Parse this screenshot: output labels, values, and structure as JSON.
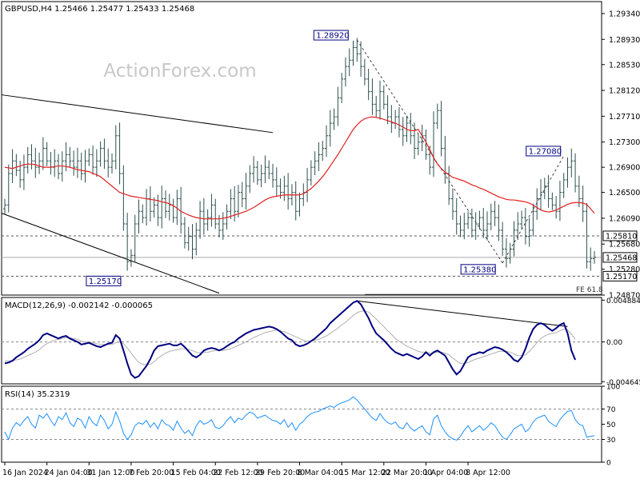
{
  "chart_data": [
    {
      "type": "candlestick-ohlc",
      "panel": "price",
      "header": "GBPUSD,H4  1.25466 1.25477 1.25433 1.25468",
      "watermark": "ActionForex.com",
      "yrange": [
        1.2487,
        1.2953
      ],
      "y_ticks": [
        "1.29340",
        "1.28930",
        "1.28530",
        "1.28120",
        "1.27710",
        "1.27300",
        "1.26900",
        "1.26500",
        "1.26090",
        "1.25680",
        "1.25280",
        "1.24870"
      ],
      "y_tick_values": [
        1.2934,
        1.2893,
        1.2853,
        1.2812,
        1.2771,
        1.273,
        1.269,
        1.265,
        1.2609,
        1.2568,
        1.2528,
        1.2487
      ],
      "price_boxes": [
        {
          "label": "1.25810",
          "value": 1.2581
        },
        {
          "label": "1.25468",
          "value": 1.25468
        },
        {
          "label": "1.25170",
          "value": 1.2517
        }
      ],
      "horizontal_levels": [
        1.2581,
        1.25468,
        1.2517
      ],
      "annotations": [
        {
          "label": "1.28920",
          "value": 1.2892
        },
        {
          "label": "1.27080",
          "value": 1.2708
        },
        {
          "label": "1.25380",
          "value": 1.2538
        },
        {
          "label": "1.25170",
          "value": 1.2517
        }
      ],
      "fe_label": "FE 61.8",
      "fe_level": 1.2488,
      "trendlines": [
        {
          "kind": "channel-top",
          "from": [
            0,
            1.2805
          ],
          "to": [
            70,
            1.2745
          ]
        },
        {
          "kind": "channel-bottom",
          "from": [
            0,
            1.2617
          ],
          "to": [
            56,
            1.249
          ]
        },
        {
          "kind": "projection-dashed",
          "from": [
            92,
            1.2892
          ],
          "to": [
            130,
            1.2538
          ]
        },
        {
          "kind": "projection-dashed",
          "from": [
            130,
            1.2538
          ],
          "to": [
            146,
            1.2708
          ]
        }
      ],
      "series": [
        {
          "role": "close",
          "values": [
            1.263,
            1.268,
            1.27,
            1.2685,
            1.267,
            1.269,
            1.271,
            1.27,
            1.269,
            1.27,
            1.272,
            1.27,
            1.269,
            1.27,
            1.268,
            1.27,
            1.271,
            1.27,
            1.269,
            1.27,
            1.268,
            1.27,
            1.271,
            1.269,
            1.27,
            1.272,
            1.27,
            1.269,
            1.27,
            1.274,
            1.268,
            1.26,
            1.254,
            1.255,
            1.26,
            1.262,
            1.261,
            1.264,
            1.262,
            1.263,
            1.261,
            1.264,
            1.262,
            1.263,
            1.261,
            1.264,
            1.26,
            1.257,
            1.258,
            1.256,
            1.259,
            1.262,
            1.26,
            1.261,
            1.263,
            1.26,
            1.259,
            1.26,
            1.262,
            1.264,
            1.262,
            1.265,
            1.264,
            1.266,
            1.268,
            1.269,
            1.267,
            1.268,
            1.269,
            1.268,
            1.267,
            1.266,
            1.265,
            1.266,
            1.264,
            1.265,
            1.262,
            1.264,
            1.265,
            1.267,
            1.269,
            1.27,
            1.271,
            1.272,
            1.274,
            1.276,
            1.277,
            1.28,
            1.283,
            1.285,
            1.286,
            1.288,
            1.287,
            1.285,
            1.283,
            1.281,
            1.279,
            1.278,
            1.281,
            1.279,
            1.277,
            1.276,
            1.277,
            1.275,
            1.274,
            1.276,
            1.274,
            1.272,
            1.273,
            1.274,
            1.271,
            1.269,
            1.276,
            1.278,
            1.272,
            1.268,
            1.264,
            1.262,
            1.26,
            1.259,
            1.26,
            1.261,
            1.259,
            1.26,
            1.261,
            1.259,
            1.26,
            1.262,
            1.261,
            1.259,
            1.256,
            1.2545,
            1.256,
            1.259,
            1.26,
            1.261,
            1.258,
            1.259,
            1.262,
            1.264,
            1.265,
            1.266,
            1.264,
            1.263,
            1.262,
            1.265,
            1.267,
            1.269,
            1.27,
            1.266,
            1.264,
            1.262,
            1.254,
            1.2545,
            1.2547
          ]
        },
        {
          "role": "moving-average",
          "values": [
            1.269,
            1.2689,
            1.2688,
            1.269,
            1.2692,
            1.2694,
            1.2695,
            1.2695,
            1.2694,
            1.2692,
            1.269,
            1.269,
            1.269,
            1.2691,
            1.2692,
            1.2692,
            1.2691,
            1.269,
            1.2688,
            1.2686,
            1.2685,
            1.2684,
            1.2683,
            1.268,
            1.2678,
            1.2675,
            1.267,
            1.2665,
            1.266,
            1.2655,
            1.265,
            1.2648,
            1.2646,
            1.2644,
            1.2643,
            1.2642,
            1.2641,
            1.264,
            1.2639,
            1.2638,
            1.2637,
            1.2635,
            1.2634,
            1.2632,
            1.2629,
            1.2625,
            1.262,
            1.2617,
            1.2614,
            1.2612,
            1.261,
            1.2609,
            1.2608,
            1.2608,
            1.2608,
            1.2608,
            1.2608,
            1.2609,
            1.261,
            1.2612,
            1.2614,
            1.2616,
            1.2618,
            1.262,
            1.2623,
            1.2626,
            1.263,
            1.2634,
            1.2638,
            1.2641,
            1.2643,
            1.2644,
            1.2645,
            1.2646,
            1.2646,
            1.2646,
            1.2646,
            1.2646,
            1.2648,
            1.2652,
            1.2656,
            1.2662,
            1.2668,
            1.2675,
            1.2683,
            1.2692,
            1.2701,
            1.271,
            1.272,
            1.273,
            1.274,
            1.275,
            1.2757,
            1.2763,
            1.2767,
            1.2769,
            1.277,
            1.2769,
            1.2768,
            1.2766,
            1.2764,
            1.2762,
            1.276,
            1.2757,
            1.2754,
            1.275,
            1.2748,
            1.2748,
            1.275,
            1.274,
            1.273,
            1.2718,
            1.2705,
            1.2695,
            1.2688,
            1.2682,
            1.2678,
            1.2674,
            1.2672,
            1.267,
            1.2668,
            1.2665,
            1.2662,
            1.266,
            1.2657,
            1.2655,
            1.2652,
            1.2649,
            1.2646,
            1.2643,
            1.2641,
            1.2639,
            1.2638,
            1.2638,
            1.2637,
            1.2636,
            1.2635,
            1.2633,
            1.263,
            1.2626,
            1.2622,
            1.262,
            1.2619,
            1.262,
            1.2622,
            1.2625,
            1.2628,
            1.2631,
            1.2633,
            1.2634,
            1.2634,
            1.2633,
            1.2631,
            1.2624,
            1.2617
          ]
        }
      ]
    },
    {
      "type": "line",
      "panel": "macd",
      "header": "MACD(12,26,9) -0.002142 -0.000065",
      "yrange": [
        -0.0049,
        0.0052
      ],
      "y_ticks": [
        "0.004884",
        "0.00",
        "-0.004645"
      ],
      "y_tick_values": [
        0.004884,
        0.0,
        -0.004645
      ],
      "zero_line": 0.0,
      "trendline": {
        "from": [
          92,
          0.0048
        ],
        "to": [
          147,
          0.0018
        ]
      },
      "series": [
        {
          "role": "macd",
          "values": [
            -0.0025,
            -0.0024,
            -0.0022,
            -0.0018,
            -0.0015,
            -0.0012,
            -0.0008,
            -0.0005,
            -0.0002,
            0.0002,
            0.0008,
            0.001,
            0.0008,
            0.0006,
            0.0004,
            0.0006,
            0.0007,
            0.0004,
            0.0002,
            0.0,
            -0.0003,
            -0.0002,
            -0.0001,
            -0.0003,
            -0.0005,
            -0.0006,
            -0.0004,
            -0.0002,
            -0.0001,
            0.0008,
            0.0004,
            -0.001,
            -0.0025,
            -0.0038,
            -0.0042,
            -0.004,
            -0.0034,
            -0.0028,
            -0.002,
            -0.001,
            -0.0005,
            -0.0004,
            -0.0003,
            -0.0002,
            -0.0004,
            -0.0004,
            -0.0002,
            -0.0006,
            -0.0011,
            -0.0016,
            -0.0018,
            -0.0015,
            -0.001,
            -0.0008,
            -0.0007,
            -0.0008,
            -0.001,
            -0.0008,
            -0.0005,
            -0.0002,
            0.0,
            0.0004,
            0.0007,
            0.001,
            0.0012,
            0.0014,
            0.0015,
            0.0016,
            0.0017,
            0.0018,
            0.0017,
            0.0015,
            0.0012,
            0.0008,
            0.0004,
            0.0002,
            -0.0003,
            -0.0005,
            -0.0004,
            -0.0002,
            0.0001,
            0.0004,
            0.0008,
            0.0012,
            0.0016,
            0.0022,
            0.0026,
            0.003,
            0.0034,
            0.0038,
            0.0042,
            0.0046,
            0.0048,
            0.0044,
            0.0036,
            0.0028,
            0.0018,
            0.001,
            0.0006,
            0.0002,
            -0.0003,
            -0.0008,
            -0.0012,
            -0.0014,
            -0.0016,
            -0.0014,
            -0.0016,
            -0.0018,
            -0.002,
            -0.0017,
            -0.0012,
            -0.0016,
            -0.0012,
            -0.001,
            -0.0013,
            -0.0016,
            -0.0024,
            -0.0032,
            -0.0038,
            -0.0034,
            -0.0026,
            -0.0018,
            -0.0015,
            -0.0014,
            -0.0012,
            -0.0013,
            -0.001,
            -0.0008,
            -0.0006,
            -0.0007,
            -0.0009,
            -0.0012,
            -0.0016,
            -0.0021,
            -0.0023,
            -0.0018,
            -0.0008,
            0.0005,
            0.0015,
            0.002,
            0.0022,
            0.002,
            0.0016,
            0.0013,
            0.0016,
            0.002,
            0.0022,
            0.001,
            -0.001,
            -0.0021
          ]
        },
        {
          "role": "signal",
          "values": [
            -0.0022,
            -0.0022,
            -0.0022,
            -0.0021,
            -0.002,
            -0.0018,
            -0.0016,
            -0.0014,
            -0.0012,
            -0.0009,
            -0.0005,
            -0.0002,
            0.0,
            0.0002,
            0.0003,
            0.0004,
            0.0005,
            0.0005,
            0.0004,
            0.0003,
            0.0001,
            0.0,
            0.0,
            -0.0001,
            -0.0002,
            -0.0003,
            -0.0003,
            -0.0003,
            -0.0003,
            -0.0001,
            0.0,
            -0.0002,
            -0.0007,
            -0.0013,
            -0.0019,
            -0.0024,
            -0.0026,
            -0.0027,
            -0.0026,
            -0.0023,
            -0.0019,
            -0.0016,
            -0.0013,
            -0.0011,
            -0.001,
            -0.0009,
            -0.0008,
            -0.0008,
            -0.0009,
            -0.001,
            -0.0012,
            -0.0013,
            -0.0012,
            -0.0012,
            -0.0011,
            -0.001,
            -0.001,
            -0.001,
            -0.0009,
            -0.0008,
            -0.0006,
            -0.0004,
            -0.0002,
            0.0,
            0.0003,
            0.0005,
            0.0007,
            0.0009,
            0.0011,
            0.0012,
            0.0013,
            0.0014,
            0.0013,
            0.0012,
            0.001,
            0.0008,
            0.0006,
            0.0004,
            0.0002,
            0.0001,
            0.0001,
            0.0002,
            0.0003,
            0.0005,
            0.0007,
            0.001,
            0.0013,
            0.0016,
            0.002,
            0.0023,
            0.0027,
            0.0031,
            0.0034,
            0.0036,
            0.0036,
            0.0035,
            0.0031,
            0.0027,
            0.0022,
            0.0018,
            0.0013,
            0.0009,
            0.0004,
            0.0001,
            -0.0002,
            -0.0005,
            -0.0007,
            -0.0009,
            -0.0011,
            -0.0012,
            -0.0012,
            -0.0013,
            -0.0013,
            -0.0012,
            -0.0012,
            -0.0013,
            -0.0015,
            -0.0019,
            -0.0022,
            -0.0025,
            -0.0025,
            -0.0024,
            -0.0022,
            -0.002,
            -0.0019,
            -0.0017,
            -0.0016,
            -0.0014,
            -0.0013,
            -0.0011,
            -0.0011,
            -0.0011,
            -0.0012,
            -0.0014,
            -0.0016,
            -0.0016,
            -0.0015,
            -0.0011,
            -0.0006,
            -0.0001,
            0.0004,
            0.0007,
            0.0009,
            0.001,
            0.0011,
            0.0013,
            0.0015,
            0.0014,
            0.0009,
            0.0003
          ]
        }
      ]
    },
    {
      "type": "line",
      "panel": "rsi",
      "header": "RSI(14) 35.2319",
      "yrange": [
        0,
        100
      ],
      "y_ticks": [
        "100",
        "70",
        "50",
        "30",
        "0"
      ],
      "y_tick_values": [
        100,
        70,
        50,
        30,
        0
      ],
      "dashed_levels": [
        70,
        30
      ],
      "series": [
        {
          "role": "rsi",
          "values": [
            40,
            30,
            45,
            52,
            48,
            55,
            60,
            50,
            45,
            62,
            58,
            64,
            55,
            48,
            60,
            56,
            65,
            52,
            47,
            58,
            55,
            45,
            60,
            52,
            48,
            62,
            55,
            44,
            50,
            66,
            54,
            38,
            30,
            36,
            48,
            52,
            50,
            55,
            46,
            52,
            44,
            56,
            50,
            48,
            42,
            54,
            45,
            38,
            42,
            35,
            48,
            55,
            50,
            52,
            56,
            46,
            44,
            48,
            55,
            60,
            52,
            58,
            56,
            62,
            66,
            64,
            58,
            60,
            62,
            58,
            55,
            54,
            50,
            56,
            46,
            52,
            42,
            50,
            54,
            60,
            64,
            66,
            67,
            70,
            72,
            74,
            72,
            76,
            78,
            80,
            82,
            86,
            82,
            76,
            70,
            64,
            58,
            55,
            64,
            57,
            52,
            50,
            53,
            46,
            44,
            52,
            45,
            41,
            45,
            48,
            40,
            36,
            57,
            62,
            48,
            40,
            34,
            31,
            29,
            34,
            42,
            48,
            40,
            44,
            48,
            42,
            46,
            52,
            48,
            40,
            33,
            30,
            36,
            44,
            47,
            50,
            40,
            44,
            53,
            58,
            60,
            62,
            54,
            50,
            47,
            56,
            62,
            67,
            68,
            56,
            50,
            48,
            33,
            34,
            35
          ]
        }
      ]
    }
  ],
  "x_axis": {
    "labels": [
      "16 Jan 2024",
      "24 Jan 04:00",
      "31 Jan 12:00",
      "7 Feb 20:00",
      "15 Feb 04:00",
      "22 Feb 12:00",
      "29 Feb 20:00",
      "8 Mar 04:00",
      "15 Mar 12:00",
      "22 Mar 20:00",
      "1 Apr 04:00",
      "8 Apr 12:00"
    ],
    "label_bar_index": [
      0,
      11,
      22,
      33,
      44,
      55,
      66,
      77,
      88,
      99,
      110,
      121
    ],
    "bar_count": 155
  },
  "colors": {
    "bars": "#2f4f4f",
    "moving_average": "#e02020",
    "macd": "#000080",
    "signal": "#b0b0b0",
    "rsi": "#1e90ff",
    "annotation_text": "#000080",
    "grid": "#888888",
    "watermark": "#c8c8c8"
  }
}
